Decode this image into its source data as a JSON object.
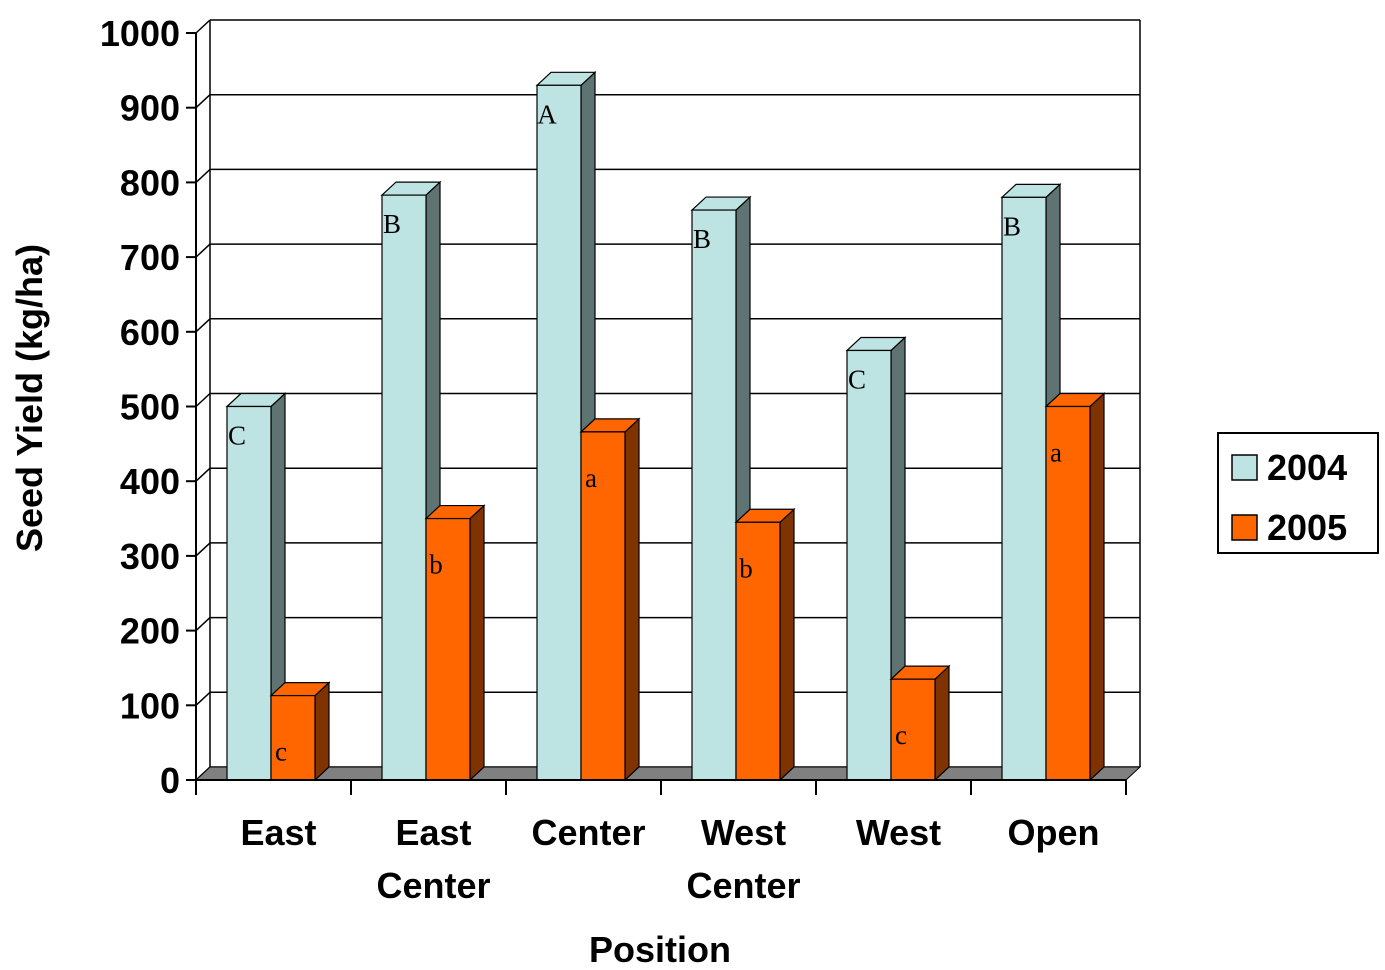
{
  "chart_data": {
    "type": "bar",
    "title": "",
    "xlabel": "Position",
    "ylabel": "Seed Yield (kg/ha)",
    "ylim": [
      0,
      1000
    ],
    "yticks": [
      "0",
      "100",
      "200",
      "300",
      "400",
      "500",
      "600",
      "700",
      "800",
      "900",
      "1000"
    ],
    "grid": true,
    "legend_position": "right",
    "categories": [
      [
        "East"
      ],
      [
        "East",
        "Center"
      ],
      [
        "Center"
      ],
      [
        "West",
        "Center"
      ],
      [
        "West"
      ],
      [
        "Open"
      ]
    ],
    "series": [
      {
        "name": "2004",
        "color": "#BEE3E3",
        "side_color": "#5F7373",
        "values": [
          500,
          783,
          930,
          763,
          575,
          780
        ],
        "labels": [
          "C",
          "B",
          "A",
          "B",
          "C",
          "B"
        ]
      },
      {
        "name": "2005",
        "color": "#FF6600",
        "side_color": "#7F3300",
        "values": [
          113,
          350,
          466,
          345,
          135,
          500
        ],
        "labels": [
          "c",
          "b",
          "a",
          "b",
          "c",
          "a"
        ]
      }
    ]
  }
}
